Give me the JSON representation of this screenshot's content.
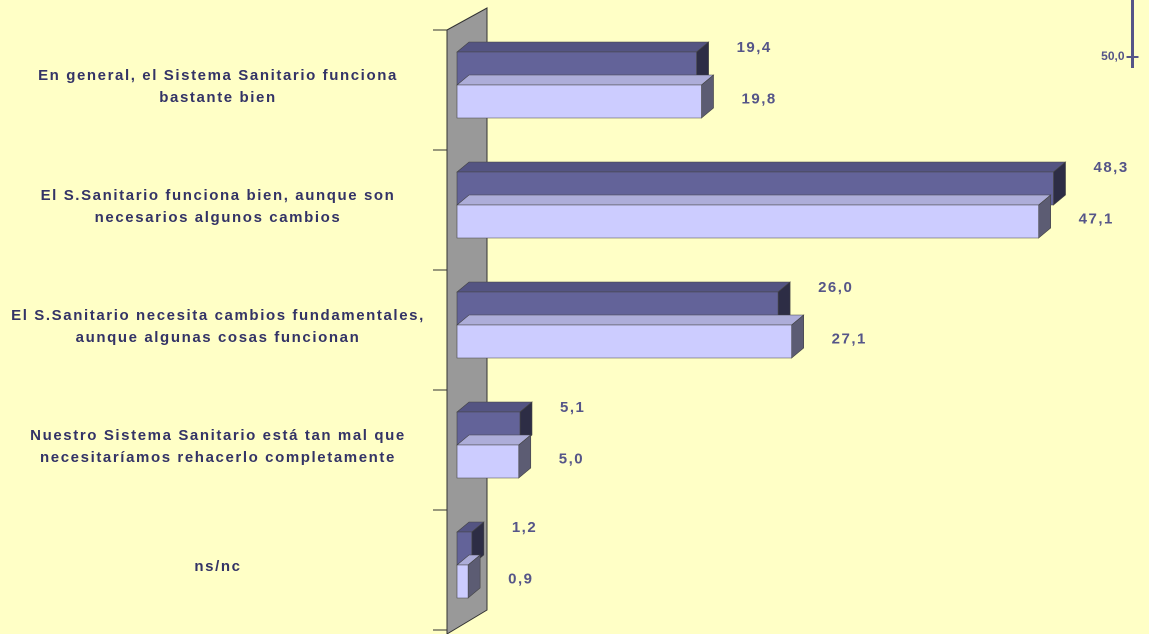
{
  "chart_data": {
    "type": "bar",
    "orientation": "horizontal",
    "categories": [
      "En general, el Sistema Sanitario funciona bastante bien",
      "El S.Sanitario funciona bien, aunque son necesarios algunos cambios",
      "El S.Sanitario necesita cambios fundamentales, aunque algunas cosas funcionan",
      "Nuestro Sistema Sanitario está tan mal que necesitaríamos rehacerlo completamente",
      "ns/nc"
    ],
    "series": [
      {
        "color": "#636399",
        "values": [
          19.4,
          48.3,
          26.0,
          5.1,
          1.2
        ],
        "value_labels": [
          "19,4",
          "48,3",
          "26,0",
          "5,1",
          "1,2"
        ]
      },
      {
        "color": "#ccccff",
        "values": [
          19.8,
          47.1,
          27.1,
          5.0,
          0.9
        ],
        "value_labels": [
          "19,8",
          "47,1",
          "27,1",
          "5,0",
          "0,9"
        ]
      }
    ],
    "xlim": [
      0,
      50
    ],
    "xticks": [
      {
        "value": 50,
        "label": "50,0"
      }
    ]
  }
}
